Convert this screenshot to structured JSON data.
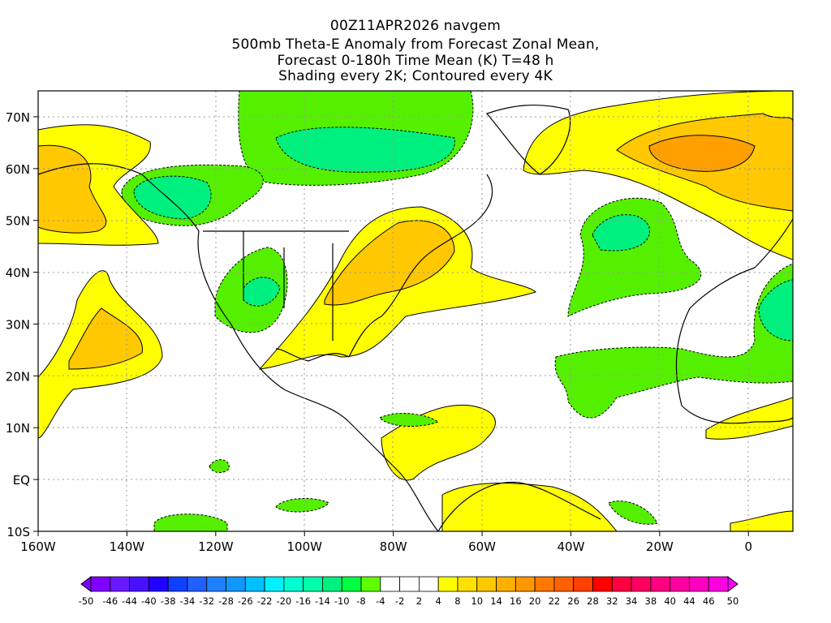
{
  "title": {
    "line1": "00Z11APR2026 navgem",
    "line2": "500mb Theta-E Anomaly from Forecast Zonal Mean,",
    "line3": "Forecast 0-180h Time Mean (K) T=48 h",
    "line4": "Shading every 2K; Contoured every 4K"
  },
  "chart_data": {
    "type": "map-contour",
    "variable": "500mb Theta-E Anomaly (K)",
    "lon_range": [
      -160,
      10
    ],
    "lat_range": [
      -10,
      75
    ],
    "grid": true,
    "x_ticks": [
      "160W",
      "140W",
      "120W",
      "100W",
      "80W",
      "60W",
      "40W",
      "20W",
      "0"
    ],
    "x_tick_values": [
      -160,
      -140,
      -120,
      -100,
      -80,
      -60,
      -40,
      -20,
      0
    ],
    "y_ticks": [
      "10S",
      "EQ",
      "10N",
      "20N",
      "30N",
      "40N",
      "50N",
      "60N",
      "70N"
    ],
    "y_tick_values": [
      -10,
      0,
      10,
      20,
      30,
      40,
      50,
      60,
      70
    ],
    "colorbar": {
      "labels": [
        "-50",
        "-46",
        "-44",
        "-40",
        "-38",
        "-34",
        "-32",
        "-28",
        "-26",
        "-22",
        "-20",
        "-16",
        "-14",
        "-10",
        "-8",
        "-4",
        "-2",
        "2",
        "4",
        "8",
        "10",
        "14",
        "16",
        "20",
        "22",
        "26",
        "28",
        "32",
        "34",
        "38",
        "40",
        "44",
        "46",
        "50"
      ],
      "colors": [
        "#8000ff",
        "#6a18ff",
        "#4810ff",
        "#2000ff",
        "#1040ff",
        "#2060ff",
        "#2080ff",
        "#1098ff",
        "#00c0ff",
        "#00f0ff",
        "#00ffd0",
        "#00ffa8",
        "#00f080",
        "#00ff40",
        "#60ff00",
        "#ffffff",
        "#ffffff",
        "#ffffff",
        "#ffff00",
        "#ffe000",
        "#ffc800",
        "#ffb000",
        "#ff9800",
        "#ff7800",
        "#ff6000",
        "#ff4000",
        "#ff0000",
        "#ff0040",
        "#ff0060",
        "#ff0080",
        "#ff00a0",
        "#ff00c0",
        "#ff00e0"
      ],
      "low_end_color": "#8000ff",
      "high_end_color": "#ff00ff"
    },
    "colors": {
      "green": "#55f000",
      "teal": "#00f080",
      "yellow": "#ffff00",
      "orange1": "#ffc800",
      "orange2": "#ffa000"
    }
  }
}
